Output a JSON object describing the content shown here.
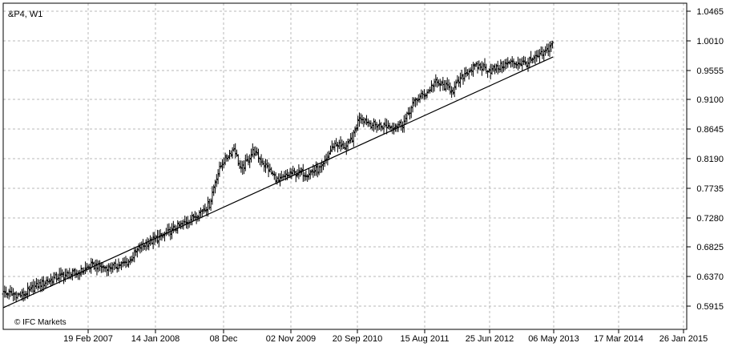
{
  "chart_header": {
    "symbol_timeframe": "&P4, W1"
  },
  "watermark": "© IFC Markets",
  "colors": {
    "background": "#ffffff",
    "plot_area": "#ffffff",
    "grid": "#b8b8b8",
    "frame": "#000000",
    "bars": "#000000",
    "trendline": "#000000",
    "text": "#000000"
  },
  "chart_data": {
    "type": "ohlc",
    "title": "&P4, W1",
    "xlabel": "",
    "ylabel": "",
    "ylim": [
      0.576,
      1.0465
    ],
    "x_axis_dates": [
      "19 Feb 2007",
      "14 Jan 2008",
      "08 Dec",
      "02 Nov 2009",
      "20 Sep 2010",
      "15 Aug 2011",
      "25 Jun 2012",
      "06 May 2013",
      "17 Mar 2014",
      "26 Jan 2015"
    ],
    "y_axis_ticks": [
      "1.0465",
      "1.0010",
      "0.9555",
      "0.9100",
      "0.8645",
      "0.8190",
      "0.7735",
      "0.7280",
      "0.6825",
      "0.6370",
      "0.5915"
    ],
    "grid": true,
    "trendline": {
      "start_date": "Jan 2006",
      "start_value": 0.589,
      "end_date": "May 2013",
      "end_value": 0.976
    },
    "close_anchors": [
      {
        "date": "Jan 2006",
        "value": 0.612
      },
      {
        "date": "Apr 2006",
        "value": 0.608
      },
      {
        "date": "Jul 2006",
        "value": 0.626
      },
      {
        "date": "Oct 2006",
        "value": 0.638
      },
      {
        "date": "Jan 2007",
        "value": 0.643
      },
      {
        "date": "Mar 2007",
        "value": 0.654
      },
      {
        "date": "Jun 2007",
        "value": 0.651
      },
      {
        "date": "Sep 2007",
        "value": 0.659
      },
      {
        "date": "Nov 2007",
        "value": 0.683
      },
      {
        "date": "Jan 2008",
        "value": 0.693
      },
      {
        "date": "Apr 2008",
        "value": 0.708
      },
      {
        "date": "Jul 2008",
        "value": 0.726
      },
      {
        "date": "Oct 2008",
        "value": 0.748
      },
      {
        "date": "Nov 2008",
        "value": 0.788
      },
      {
        "date": "Dec 2008",
        "value": 0.812
      },
      {
        "date": "Feb 2009",
        "value": 0.836
      },
      {
        "date": "Mar 2009",
        "value": 0.8
      },
      {
        "date": "May 2009",
        "value": 0.831
      },
      {
        "date": "Jul 2009",
        "value": 0.808
      },
      {
        "date": "Sep 2009",
        "value": 0.784
      },
      {
        "date": "Nov 2009",
        "value": 0.796
      },
      {
        "date": "Feb 2010",
        "value": 0.797
      },
      {
        "date": "Apr 2010",
        "value": 0.805
      },
      {
        "date": "Jun 2010",
        "value": 0.842
      },
      {
        "date": "Aug 2010",
        "value": 0.837
      },
      {
        "date": "Sep 2010",
        "value": 0.853
      },
      {
        "date": "Oct 2010",
        "value": 0.884
      },
      {
        "date": "Dec 2010",
        "value": 0.872
      },
      {
        "date": "Mar 2011",
        "value": 0.868
      },
      {
        "date": "May 2011",
        "value": 0.873
      },
      {
        "date": "Jul 2011",
        "value": 0.91
      },
      {
        "date": "Sep 2011",
        "value": 0.922
      },
      {
        "date": "Oct 2011",
        "value": 0.937
      },
      {
        "date": "Jan 2012",
        "value": 0.925
      },
      {
        "date": "Mar 2012",
        "value": 0.952
      },
      {
        "date": "May 2012",
        "value": 0.962
      },
      {
        "date": "Jul 2012",
        "value": 0.955
      },
      {
        "date": "Oct 2012",
        "value": 0.967
      },
      {
        "date": "Jan 2013",
        "value": 0.967
      },
      {
        "date": "Apr 2013",
        "value": 0.985
      },
      {
        "date": "May 2013",
        "value": 1.001
      }
    ]
  }
}
